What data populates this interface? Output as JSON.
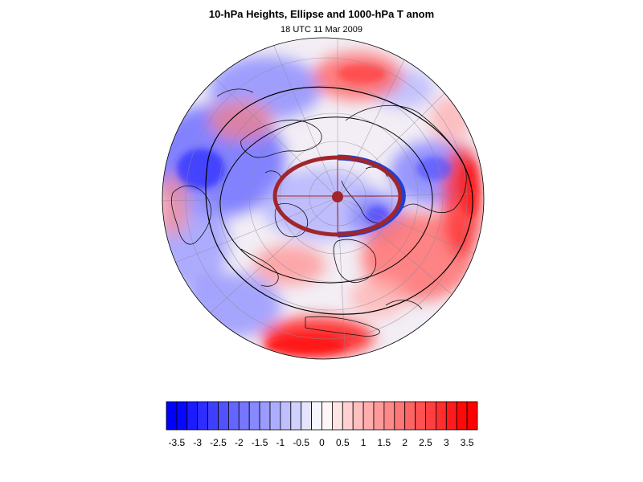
{
  "title": "10-hPa Heights, Ellipse and 1000-hPa T anom",
  "subtitle": "18 UTC 11 Mar 2009",
  "colorbar": {
    "min": -3.75,
    "max": 3.75,
    "step": 0.25,
    "low_color": "#0000ff",
    "mid_color": "#ffffff",
    "high_color": "#ff0000",
    "labels": [
      "-3.5",
      "-3",
      "-2.5",
      "-2",
      "-1.5",
      "-1",
      "-0.5",
      "0",
      "0.5",
      "1",
      "1.5",
      "2",
      "2.5",
      "3",
      "3.5"
    ]
  },
  "map": {
    "projection": "polar-orthographic",
    "hemisphere": "northern",
    "ellipse_color": "#a0262c",
    "ellipse_edge_color": "#2233cc",
    "contour_color": "#000000"
  }
}
